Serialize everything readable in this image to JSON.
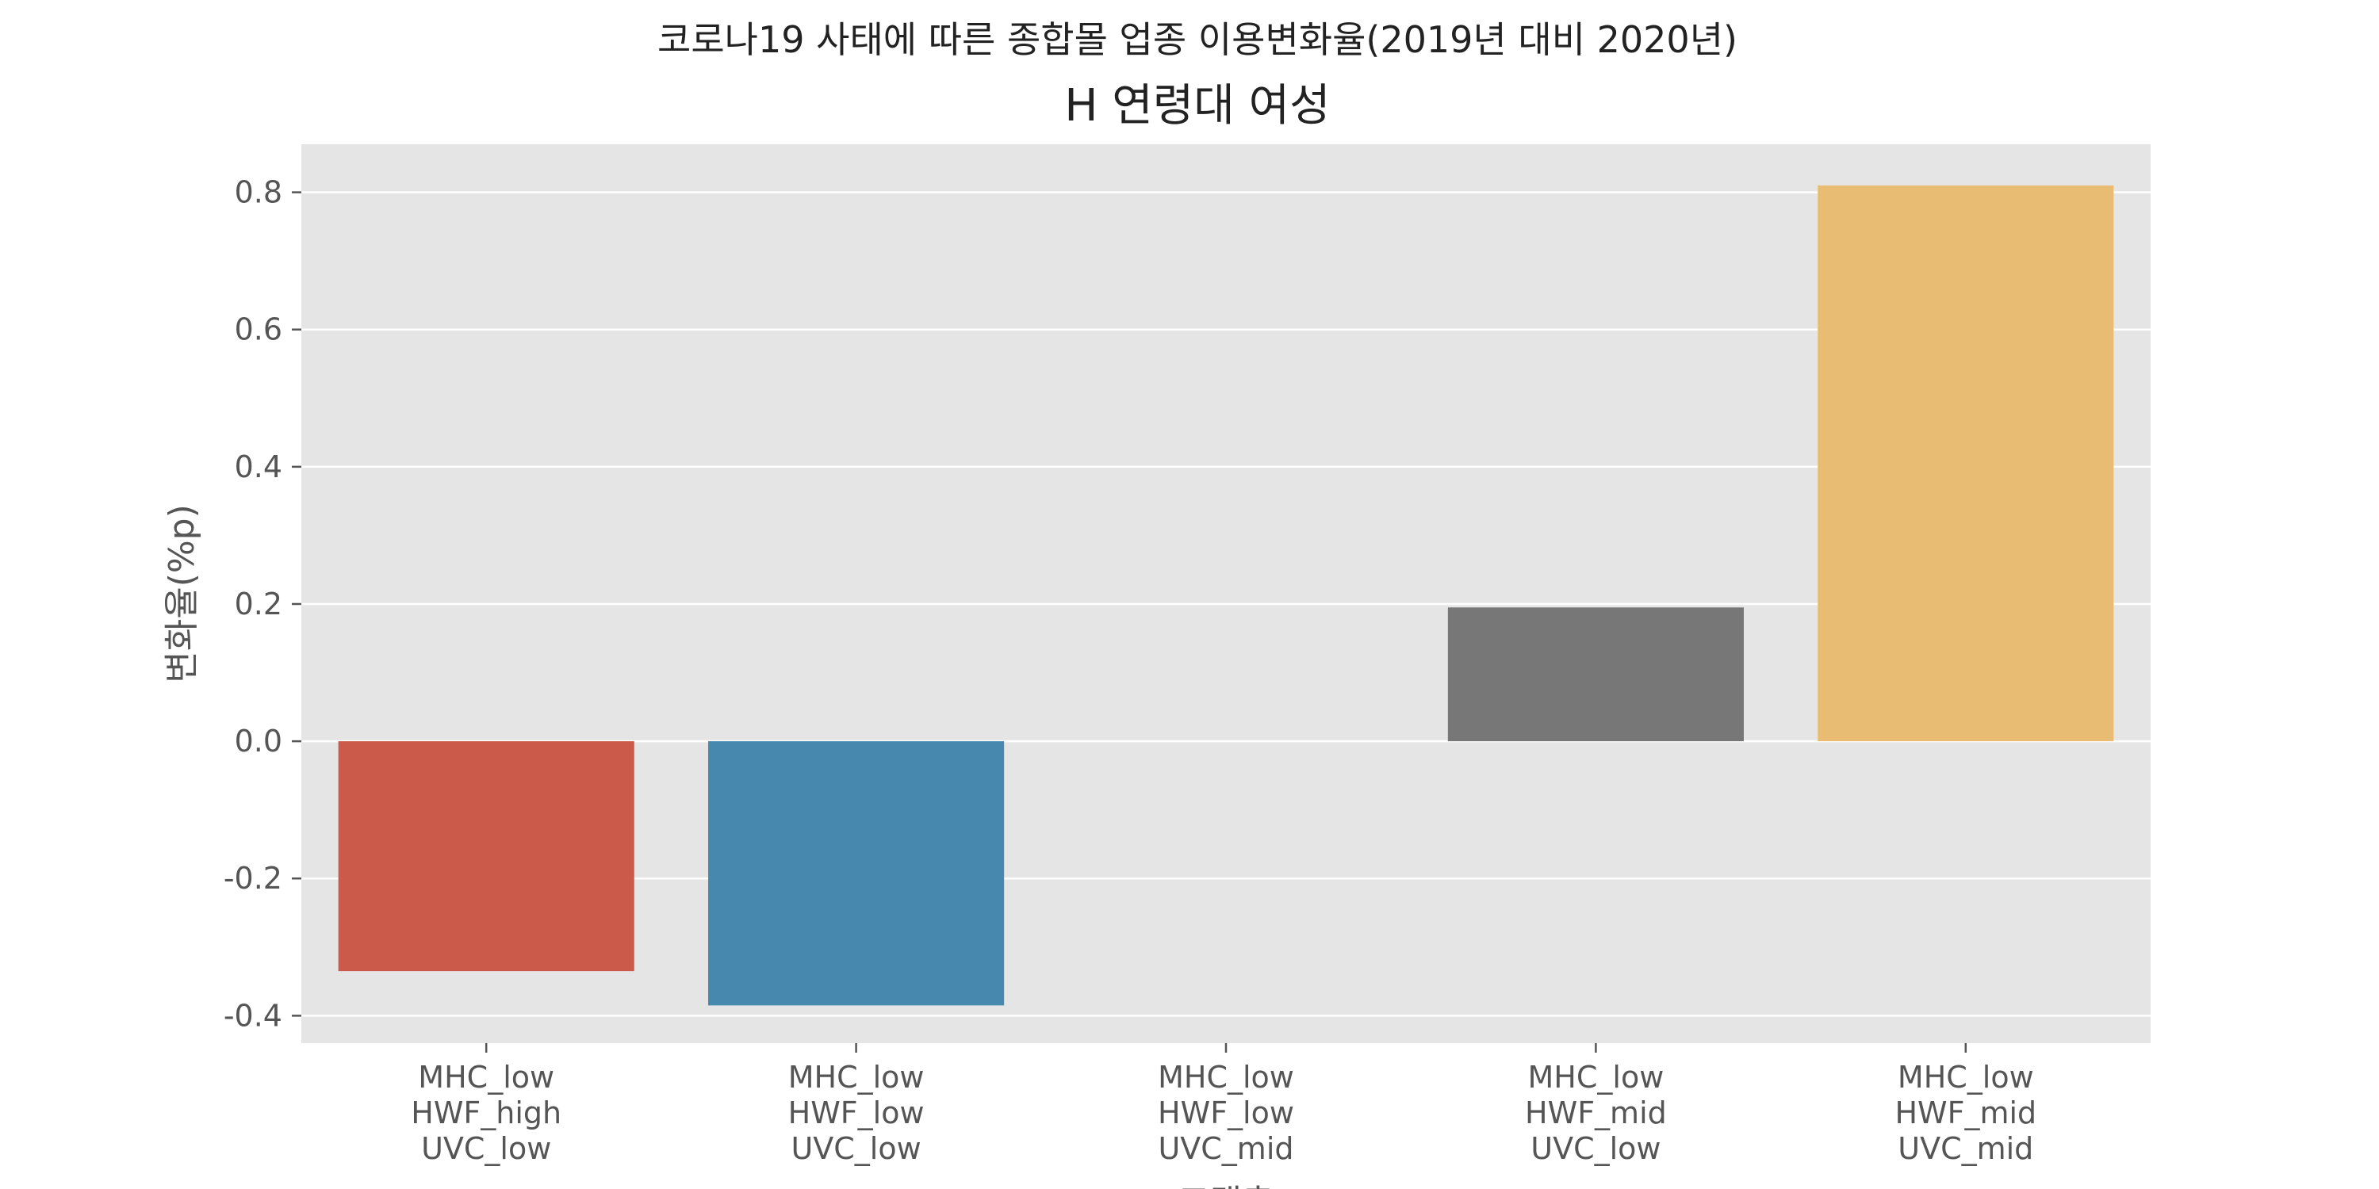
{
  "chart_data": {
    "type": "bar",
    "suptitle": "코로나19 사태에 따른 종합몰 업종 이용변화율(2019년 대비 2020년)",
    "title": "H 연령대 여성",
    "xlabel": "고객층",
    "ylabel": "변화율(%p)",
    "categories": [
      [
        "MHC_low",
        "HWF_high",
        "UVC_low"
      ],
      [
        "MHC_low",
        "HWF_low",
        "UVC_low"
      ],
      [
        "MHC_low",
        "HWF_low",
        "UVC_mid"
      ],
      [
        "MHC_low",
        "HWF_mid",
        "UVC_low"
      ],
      [
        "MHC_low",
        "HWF_mid",
        "UVC_mid"
      ]
    ],
    "values": [
      -0.335,
      -0.385,
      0.0,
      0.195,
      0.81
    ],
    "colors": [
      "#cc5a4a",
      "#4789ae",
      "#8a7ebe",
      "#777777",
      "#e8bc72"
    ],
    "ylim": [
      -0.44,
      0.87
    ],
    "yticks": [
      -0.4,
      -0.2,
      0.0,
      0.2,
      0.4,
      0.6,
      0.8
    ],
    "ytick_labels": [
      "-0.4",
      "-0.2",
      "0.0",
      "0.2",
      "0.4",
      "0.6",
      "0.8"
    ],
    "grid": true,
    "background": "#e5e5e5",
    "grid_color": "#ffffff"
  }
}
